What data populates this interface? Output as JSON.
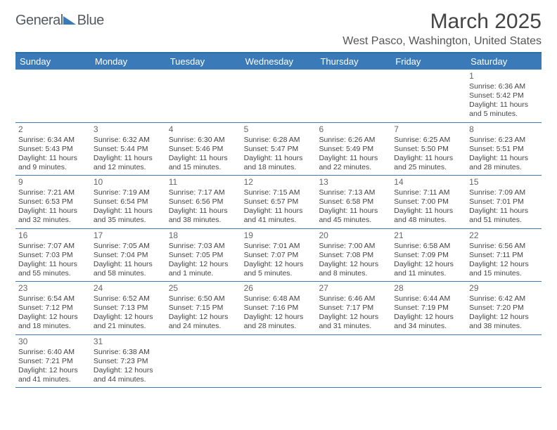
{
  "logo": {
    "text1": "General",
    "text2": "Blue"
  },
  "title": "March 2025",
  "location": "West Pasco, Washington, United States",
  "colors": {
    "header_bg": "#3a7ab8",
    "border": "#3a7ab8",
    "text": "#444444",
    "logo_gray": "#555a60"
  },
  "day_headers": [
    "Sunday",
    "Monday",
    "Tuesday",
    "Wednesday",
    "Thursday",
    "Friday",
    "Saturday"
  ],
  "weeks": [
    [
      null,
      null,
      null,
      null,
      null,
      null,
      {
        "n": "1",
        "sr": "Sunrise: 6:36 AM",
        "ss": "Sunset: 5:42 PM",
        "dl": "Daylight: 11 hours and 5 minutes."
      }
    ],
    [
      {
        "n": "2",
        "sr": "Sunrise: 6:34 AM",
        "ss": "Sunset: 5:43 PM",
        "dl": "Daylight: 11 hours and 9 minutes."
      },
      {
        "n": "3",
        "sr": "Sunrise: 6:32 AM",
        "ss": "Sunset: 5:44 PM",
        "dl": "Daylight: 11 hours and 12 minutes."
      },
      {
        "n": "4",
        "sr": "Sunrise: 6:30 AM",
        "ss": "Sunset: 5:46 PM",
        "dl": "Daylight: 11 hours and 15 minutes."
      },
      {
        "n": "5",
        "sr": "Sunrise: 6:28 AM",
        "ss": "Sunset: 5:47 PM",
        "dl": "Daylight: 11 hours and 18 minutes."
      },
      {
        "n": "6",
        "sr": "Sunrise: 6:26 AM",
        "ss": "Sunset: 5:49 PM",
        "dl": "Daylight: 11 hours and 22 minutes."
      },
      {
        "n": "7",
        "sr": "Sunrise: 6:25 AM",
        "ss": "Sunset: 5:50 PM",
        "dl": "Daylight: 11 hours and 25 minutes."
      },
      {
        "n": "8",
        "sr": "Sunrise: 6:23 AM",
        "ss": "Sunset: 5:51 PM",
        "dl": "Daylight: 11 hours and 28 minutes."
      }
    ],
    [
      {
        "n": "9",
        "sr": "Sunrise: 7:21 AM",
        "ss": "Sunset: 6:53 PM",
        "dl": "Daylight: 11 hours and 32 minutes."
      },
      {
        "n": "10",
        "sr": "Sunrise: 7:19 AM",
        "ss": "Sunset: 6:54 PM",
        "dl": "Daylight: 11 hours and 35 minutes."
      },
      {
        "n": "11",
        "sr": "Sunrise: 7:17 AM",
        "ss": "Sunset: 6:56 PM",
        "dl": "Daylight: 11 hours and 38 minutes."
      },
      {
        "n": "12",
        "sr": "Sunrise: 7:15 AM",
        "ss": "Sunset: 6:57 PM",
        "dl": "Daylight: 11 hours and 41 minutes."
      },
      {
        "n": "13",
        "sr": "Sunrise: 7:13 AM",
        "ss": "Sunset: 6:58 PM",
        "dl": "Daylight: 11 hours and 45 minutes."
      },
      {
        "n": "14",
        "sr": "Sunrise: 7:11 AM",
        "ss": "Sunset: 7:00 PM",
        "dl": "Daylight: 11 hours and 48 minutes."
      },
      {
        "n": "15",
        "sr": "Sunrise: 7:09 AM",
        "ss": "Sunset: 7:01 PM",
        "dl": "Daylight: 11 hours and 51 minutes."
      }
    ],
    [
      {
        "n": "16",
        "sr": "Sunrise: 7:07 AM",
        "ss": "Sunset: 7:03 PM",
        "dl": "Daylight: 11 hours and 55 minutes."
      },
      {
        "n": "17",
        "sr": "Sunrise: 7:05 AM",
        "ss": "Sunset: 7:04 PM",
        "dl": "Daylight: 11 hours and 58 minutes."
      },
      {
        "n": "18",
        "sr": "Sunrise: 7:03 AM",
        "ss": "Sunset: 7:05 PM",
        "dl": "Daylight: 12 hours and 1 minute."
      },
      {
        "n": "19",
        "sr": "Sunrise: 7:01 AM",
        "ss": "Sunset: 7:07 PM",
        "dl": "Daylight: 12 hours and 5 minutes."
      },
      {
        "n": "20",
        "sr": "Sunrise: 7:00 AM",
        "ss": "Sunset: 7:08 PM",
        "dl": "Daylight: 12 hours and 8 minutes."
      },
      {
        "n": "21",
        "sr": "Sunrise: 6:58 AM",
        "ss": "Sunset: 7:09 PM",
        "dl": "Daylight: 12 hours and 11 minutes."
      },
      {
        "n": "22",
        "sr": "Sunrise: 6:56 AM",
        "ss": "Sunset: 7:11 PM",
        "dl": "Daylight: 12 hours and 15 minutes."
      }
    ],
    [
      {
        "n": "23",
        "sr": "Sunrise: 6:54 AM",
        "ss": "Sunset: 7:12 PM",
        "dl": "Daylight: 12 hours and 18 minutes."
      },
      {
        "n": "24",
        "sr": "Sunrise: 6:52 AM",
        "ss": "Sunset: 7:13 PM",
        "dl": "Daylight: 12 hours and 21 minutes."
      },
      {
        "n": "25",
        "sr": "Sunrise: 6:50 AM",
        "ss": "Sunset: 7:15 PM",
        "dl": "Daylight: 12 hours and 24 minutes."
      },
      {
        "n": "26",
        "sr": "Sunrise: 6:48 AM",
        "ss": "Sunset: 7:16 PM",
        "dl": "Daylight: 12 hours and 28 minutes."
      },
      {
        "n": "27",
        "sr": "Sunrise: 6:46 AM",
        "ss": "Sunset: 7:17 PM",
        "dl": "Daylight: 12 hours and 31 minutes."
      },
      {
        "n": "28",
        "sr": "Sunrise: 6:44 AM",
        "ss": "Sunset: 7:19 PM",
        "dl": "Daylight: 12 hours and 34 minutes."
      },
      {
        "n": "29",
        "sr": "Sunrise: 6:42 AM",
        "ss": "Sunset: 7:20 PM",
        "dl": "Daylight: 12 hours and 38 minutes."
      }
    ],
    [
      {
        "n": "30",
        "sr": "Sunrise: 6:40 AM",
        "ss": "Sunset: 7:21 PM",
        "dl": "Daylight: 12 hours and 41 minutes."
      },
      {
        "n": "31",
        "sr": "Sunrise: 6:38 AM",
        "ss": "Sunset: 7:23 PM",
        "dl": "Daylight: 12 hours and 44 minutes."
      },
      null,
      null,
      null,
      null,
      null
    ]
  ]
}
